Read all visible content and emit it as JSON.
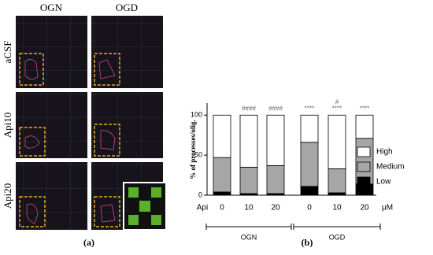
{
  "panel_a": {
    "columns": [
      "OGN",
      "OGD"
    ],
    "rows": [
      "aCSF",
      "Api10",
      "Api20"
    ],
    "label": "(a)"
  },
  "chart_data": {
    "type": "bar",
    "stacked": true,
    "panel_label": "(b)",
    "y_label": "% of processes/olig.",
    "x_prefix": "Api",
    "x_unit": "μM",
    "categories": [
      "0",
      "10",
      "20",
      "0",
      "10",
      "20"
    ],
    "groups": [
      "OGN",
      "OGD"
    ],
    "series": [
      {
        "name": "Low",
        "color": "#000000",
        "values": [
          4,
          2,
          2,
          11,
          3,
          14
        ]
      },
      {
        "name": "Medium",
        "color": "#a6a6a6",
        "values": [
          43,
          33,
          35,
          55,
          30,
          57
        ]
      },
      {
        "name": "High",
        "color": "#ffffff",
        "values": [
          53,
          65,
          63,
          34,
          67,
          29
        ]
      }
    ],
    "hash_labels": [
      null,
      "####",
      "####",
      null,
      "#",
      null
    ],
    "star_labels": [
      null,
      null,
      null,
      "****",
      "****",
      "****"
    ],
    "ylim": [
      0,
      115
    ],
    "yticks": [
      0,
      50,
      100
    ]
  }
}
